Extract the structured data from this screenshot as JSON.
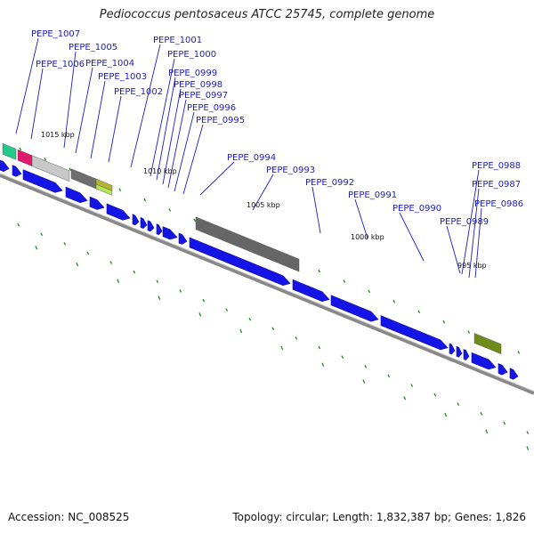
{
  "title": "Pediococcus pentosaceus ATCC 25745, complete genome",
  "footer": {
    "accession": "Accession: NC_008525",
    "summary": "Topology: circular; Length: 1,832,387 bp; Genes: 1,826"
  },
  "colors": {
    "gene_label": "#1c1cbf",
    "cds_arrow": "#1414e6",
    "backbone": "#888888",
    "tick": "#1f8a1f"
  },
  "scale_labels": [
    "1015 kbp",
    "1010 kbp",
    "1005 kbp",
    "1000 kbp",
    "995 kbp"
  ],
  "gene_labels": [
    "PEPE_1007",
    "PEPE_1006",
    "PEPE_1005",
    "PEPE_1004",
    "PEPE_1003",
    "PEPE_1002",
    "PEPE_1001",
    "PEPE_1000",
    "PEPE_0999",
    "PEPE_0998",
    "PEPE_0997",
    "PEPE_0996",
    "PEPE_0995",
    "PEPE_0994",
    "PEPE_0993",
    "PEPE_0992",
    "PEPE_0991",
    "PEPE_0990",
    "PEPE_0989",
    "PEPE_0988",
    "PEPE_0987",
    "PEPE_0986"
  ]
}
